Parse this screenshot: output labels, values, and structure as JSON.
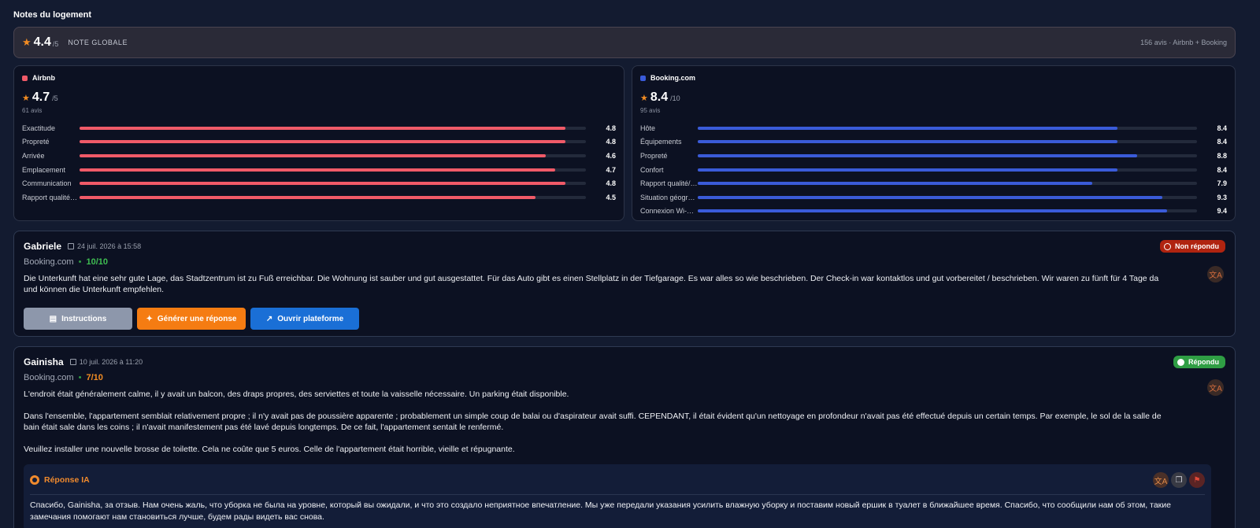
{
  "page": {
    "title": "Notes du logement"
  },
  "overall": {
    "score": "4.4",
    "of": "/5",
    "label": "NOTE GLOBALE",
    "meta": "156 avis · Airbnb + Booking"
  },
  "airbnb": {
    "name": "Airbnb",
    "color": "#f05a68",
    "score": "4.7",
    "of": "/5",
    "count": "61 avis",
    "criteria": [
      {
        "label": "Exactitude",
        "value": "4.8",
        "fraction": 0.96
      },
      {
        "label": "Propreté",
        "value": "4.8",
        "fraction": 0.96
      },
      {
        "label": "Arrivée",
        "value": "4.6",
        "fraction": 0.92
      },
      {
        "label": "Emplacement",
        "value": "4.7",
        "fraction": 0.94
      },
      {
        "label": "Communication",
        "value": "4.8",
        "fraction": 0.96
      },
      {
        "label": "Rapport qualité-…",
        "value": "4.5",
        "fraction": 0.9
      }
    ]
  },
  "booking": {
    "name": "Booking.com",
    "color": "#3a5bd9",
    "score": "8.4",
    "of": "/10",
    "count": "95 avis",
    "criteria": [
      {
        "label": "Hôte",
        "value": "8.4",
        "fraction": 0.84
      },
      {
        "label": "Équipements",
        "value": "8.4",
        "fraction": 0.84
      },
      {
        "label": "Propreté",
        "value": "8.8",
        "fraction": 0.88
      },
      {
        "label": "Confort",
        "value": "8.4",
        "fraction": 0.84
      },
      {
        "label": "Rapport qualité/…",
        "value": "7.9",
        "fraction": 0.79
      },
      {
        "label": "Situation géogra…",
        "value": "9.3",
        "fraction": 0.93
      },
      {
        "label": "Connexion Wi-Fi…",
        "value": "9.4",
        "fraction": 0.94
      }
    ]
  },
  "reviews": [
    {
      "name": "Gabriele",
      "date": "24 juil. 2026 à 15:58",
      "status": "Non répondu",
      "source": "Booking.com",
      "score": "10/10",
      "text": [
        "Die Unterkunft hat eine sehr gute Lage, das Stadtzentrum ist zu Fuß erreichbar. Die Wohnung ist sauber und gut ausgestattet. Für das Auto gibt es einen Stellplatz in der Tiefgarage. Es war alles so wie beschrieben. Der Check-in war kontaktlos und gut vorbereitet / beschrieben. Wir waren zu fünft für 4 Tage da und können die Unterkunft empfehlen."
      ],
      "buttons": {
        "instructions": "Instructions",
        "generate": "Générer une réponse",
        "open": "Ouvrir plateforme"
      }
    },
    {
      "name": "Gainisha",
      "date": "10 juil. 2026 à 11:20",
      "status": "Répondu",
      "source": "Booking.com",
      "score": "7/10",
      "text": [
        "L'endroit était généralement calme, il y avait un balcon, des draps propres, des serviettes et toute la vaisselle nécessaire. Un parking était disponible.",
        "Dans l'ensemble, l'appartement semblait relativement propre ; il n'y avait pas de poussière apparente ; probablement un simple coup de balai ou d'aspirateur avait suffi. CEPENDANT, il était évident qu'un nettoyage en profondeur n'avait pas été effectué depuis un certain temps. Par exemple, le sol de la salle de bain était sale dans les coins ; il n'avait manifestement pas été lavé depuis longtemps. De ce fait, l'appartement sentait le renfermé.",
        "Veuillez installer une nouvelle brosse de toilette. Cela ne coûte que 5 euros. Celle de l'appartement était horrible, vieille et répugnante."
      ],
      "ai": {
        "title": "Réponse IA",
        "text": "Спасибо, Gainisha, за отзыв. Нам очень жаль, что уборка не была на уровне, который вы ожидали, и что это создало неприятное впечатление. Мы уже передали указания усилить влажную уборку и поставим новый ершик в туалет в ближайшее время. Спасибо, что сообщили нам об этом, такие замечания помогают нам становиться лучше, будем рады видеть вас снова."
      }
    }
  ],
  "icons": {
    "star": "star-icon",
    "calendar": "calendar-icon",
    "translate": "translate-icon",
    "copy": "copy-icon",
    "flag": "flag-icon",
    "clock": "clock-icon",
    "check": "check-icon",
    "wand": "wand-icon",
    "external": "external-link-icon",
    "doc": "document-icon"
  }
}
